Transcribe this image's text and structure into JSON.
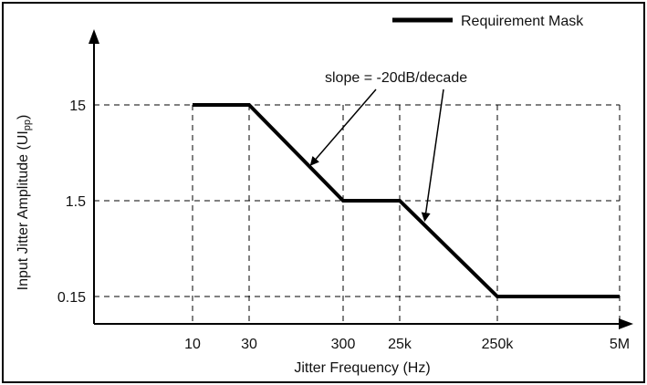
{
  "chart_data": {
    "type": "line",
    "title": "",
    "xlabel": "Jitter Frequency (Hz)",
    "ylabel": "Input Jitter Amplitude (UIpp)",
    "ylabel_main": "Input Jitter Amplitude (UI",
    "ylabel_sub": "pp",
    "ylabel_close": ")",
    "x_scale": "categorical-log",
    "y_scale": "log",
    "x_ticks": [
      "10",
      "30",
      "300",
      "25k",
      "250k",
      "5M"
    ],
    "y_ticks": [
      "15",
      "1.5",
      "0.15"
    ],
    "grid": true,
    "legend_position": "top-right",
    "series": [
      {
        "name": "Requirement Mask",
        "points": [
          {
            "x": "10",
            "y": 15
          },
          {
            "x": "30",
            "y": 15
          },
          {
            "x": "300",
            "y": 1.5
          },
          {
            "x": "25k",
            "y": 1.5
          },
          {
            "x": "250k",
            "y": 0.15
          },
          {
            "x": "5M",
            "y": 0.15
          }
        ]
      }
    ],
    "annotations": [
      {
        "text": "slope = -20dB/decade",
        "arrows_to_segments": [
          [
            1,
            2
          ],
          [
            3,
            4
          ]
        ]
      }
    ]
  }
}
